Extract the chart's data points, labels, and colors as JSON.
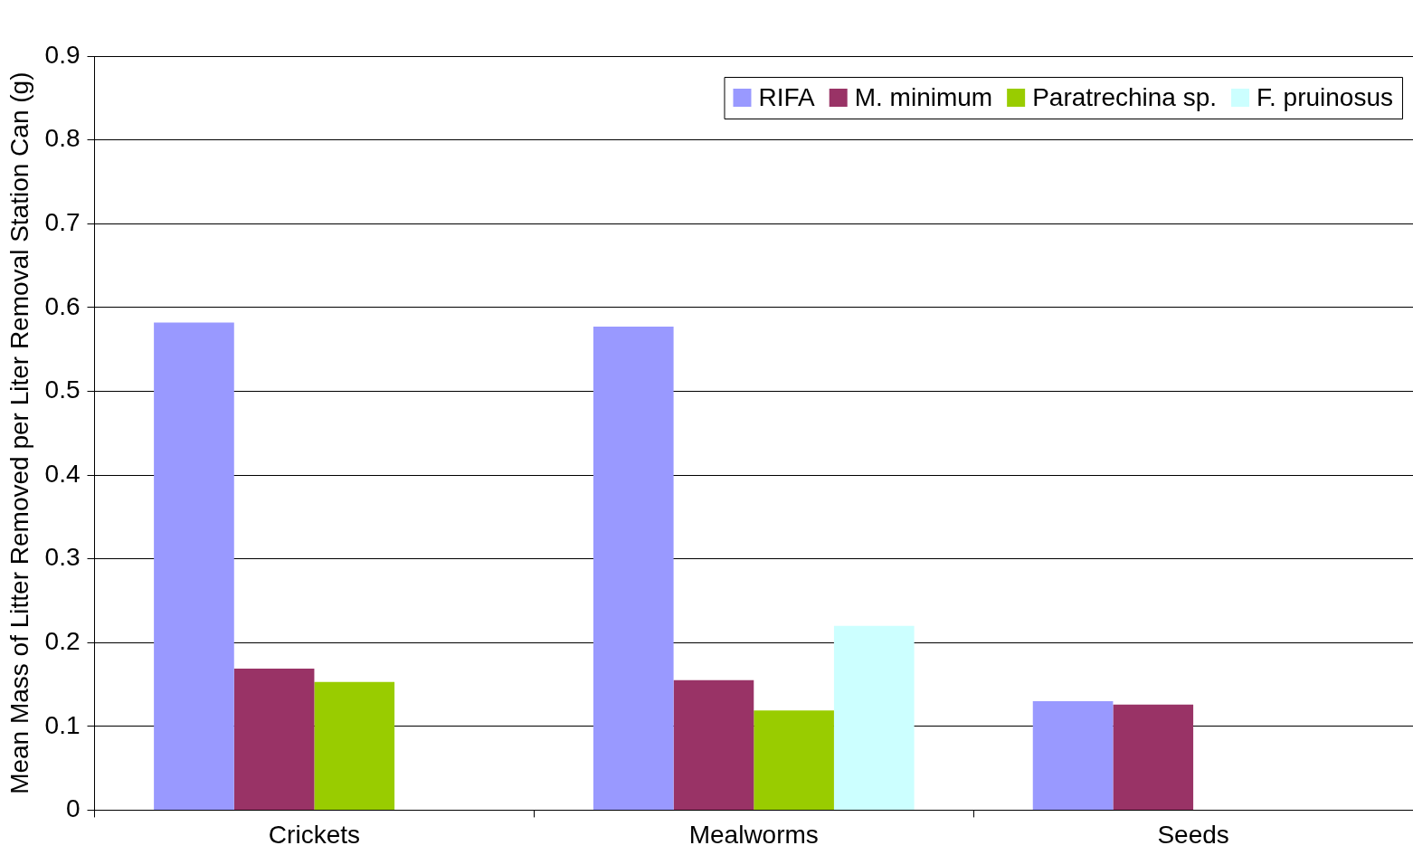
{
  "chart_data": {
    "type": "bar",
    "ylabel": "Mean Mass of Litter Removed per Liter Removal Station Can (g)",
    "categories": [
      "Crickets",
      "Mealworms",
      "Seeds"
    ],
    "series": [
      {
        "name": "RIFA",
        "color": "#9999ff",
        "values": [
          0.582,
          0.577,
          0.13
        ]
      },
      {
        "name": "M. minimum",
        "color": "#993366",
        "values": [
          0.169,
          0.155,
          0.126
        ]
      },
      {
        "name": "Paratrechina sp.",
        "color": "#99cc00",
        "values": [
          0.153,
          0.119,
          null
        ]
      },
      {
        "name": "F. pruinosus",
        "color": "#ccffff",
        "values": [
          null,
          0.22,
          null
        ]
      }
    ],
    "ylim": [
      0,
      0.9
    ],
    "yticks": [
      0,
      0.1,
      0.2,
      0.3,
      0.4,
      0.5,
      0.6,
      0.7,
      0.8,
      0.9
    ],
    "grid": "y",
    "legend": "top right"
  }
}
